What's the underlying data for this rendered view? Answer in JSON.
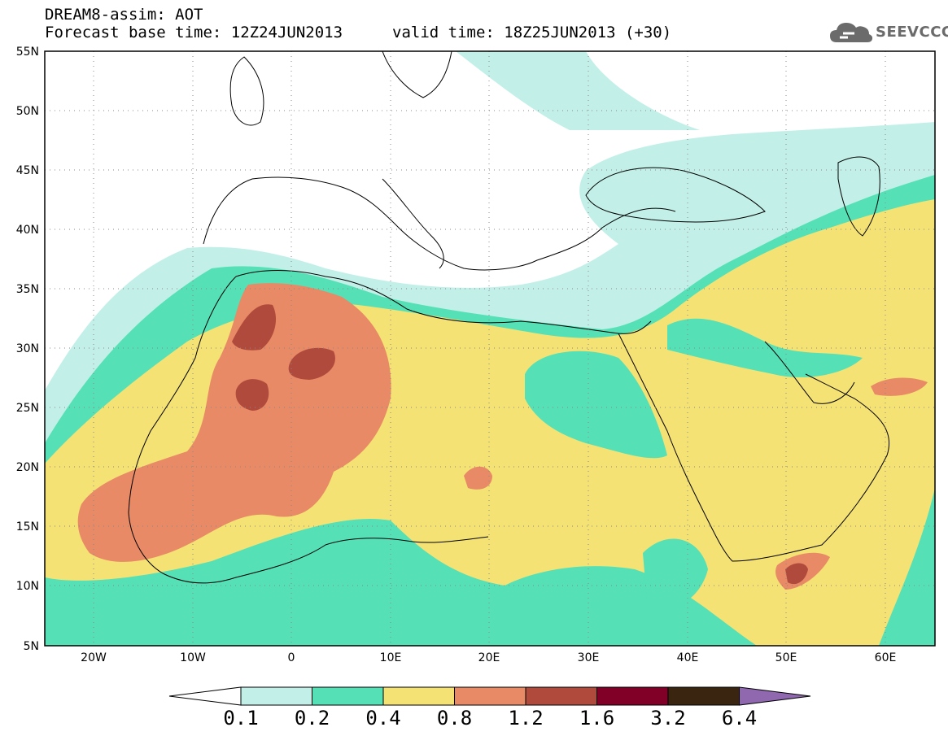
{
  "title": {
    "line1": "DREAM8-assim: AOT",
    "line2": "Forecast base time: 12Z24JUN2013",
    "valid": "valid time: 18Z25JUN2013 (+30)"
  },
  "logo": {
    "text": "SEEVCCC",
    "icon": "cloud-logo-icon"
  },
  "map": {
    "lat_labels": [
      "55N",
      "50N",
      "45N",
      "40N",
      "35N",
      "30N",
      "25N",
      "20N",
      "15N",
      "10N",
      "5N"
    ],
    "lon_labels": [
      "20W",
      "10W",
      "0",
      "10E",
      "20E",
      "30E",
      "40E",
      "50E",
      "60E"
    ],
    "grid": true,
    "colors": {
      "c01": "#c2f0e8",
      "c02": "#55e0b6",
      "c04": "#f5e275",
      "c08": "#e88a66",
      "c12": "#b04a3c",
      "c16": "#800028",
      "c32": "#3a2610",
      "c64": "#8f68b0"
    }
  },
  "colorbar": {
    "labels": [
      "0.1",
      "0.2",
      "0.4",
      "0.8",
      "1.2",
      "1.6",
      "3.2",
      "6.4"
    ]
  }
}
